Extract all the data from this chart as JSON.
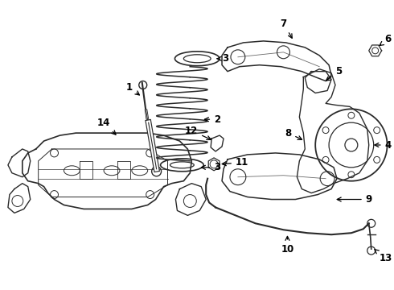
{
  "bg_color": "#ffffff",
  "line_color": "#2a2a2a",
  "label_color": "#000000",
  "label_fontsize": 8.5,
  "label_fontweight": "bold",
  "figsize": [
    4.9,
    3.6
  ],
  "dpi": 100,
  "xlim": [
    0,
    490
  ],
  "ylim": [
    0,
    360
  ]
}
